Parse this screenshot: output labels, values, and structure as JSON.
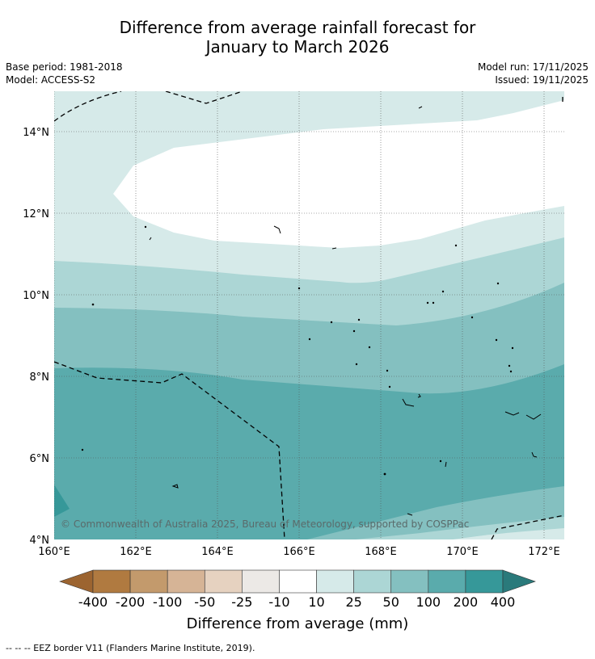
{
  "title_line1": "Difference from average rainfall forecast for",
  "title_line2": "January to March 2026",
  "base_period": "Base period: 1981-2018",
  "model": "Model: ACCESS-S2",
  "model_run": "Model run: 17/11/2025",
  "issued": "Issued: 19/11/2025",
  "copyright": "© Commonwealth of Australia 2025, Bureau of Meteorology, supported by COSPPac",
  "footnote": "--  --  -- EEZ border V11 (Flanders Marine Institute, 2019).",
  "map": {
    "lon_ticks": [
      "160°E",
      "162°E",
      "164°E",
      "166°E",
      "168°E",
      "170°E",
      "172°E"
    ],
    "lat_ticks": [
      "14°N",
      "12°N",
      "10°N",
      "8°N",
      "6°N",
      "4°N"
    ],
    "lon_range": [
      160,
      172.5
    ],
    "lat_range": [
      4,
      15
    ],
    "grid": true
  },
  "colorbar": {
    "title": "Difference from average (mm)",
    "labels": [
      "-400",
      "-200",
      "-100",
      "-50",
      "-25",
      "-10",
      "10",
      "25",
      "50",
      "100",
      "200",
      "400"
    ],
    "colors": [
      "#9c6430",
      "#b07a40",
      "#c39a6c",
      "#d6b496",
      "#e6d2c0",
      "#ece9e6",
      "#ffffff",
      "#d6eae9",
      "#acd6d5",
      "#84c0c0",
      "#5aabac",
      "#369899",
      "#2a7a7b"
    ]
  },
  "legend_line_style": "dashed"
}
